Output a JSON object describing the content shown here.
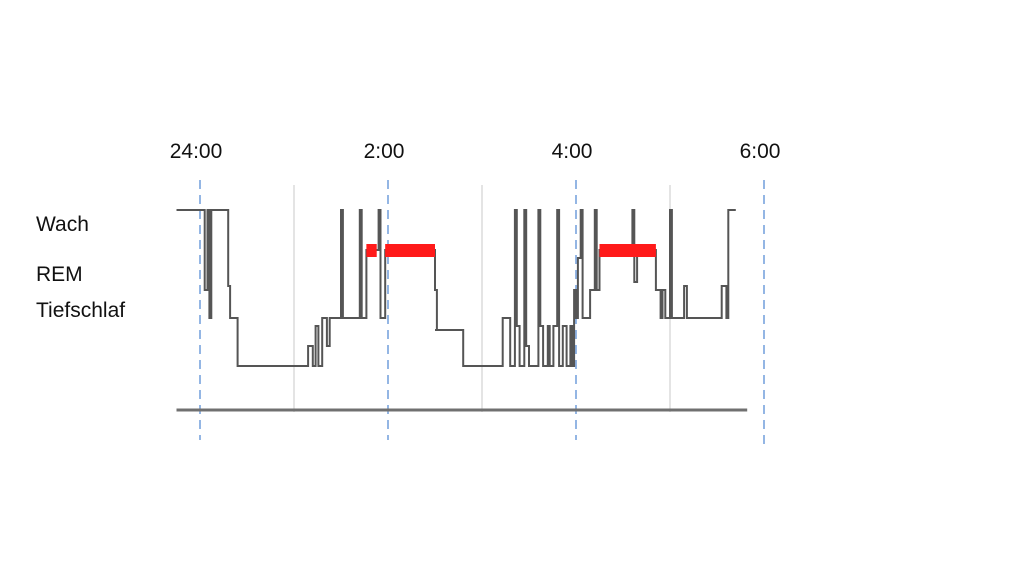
{
  "chart_data": {
    "type": "line",
    "title": "",
    "xlabel": "",
    "ylabel": "",
    "x_unit": "hours after midnight",
    "x_ticks": [
      {
        "label": "24:00",
        "value": 0
      },
      {
        "label": "2:00",
        "value": 2
      },
      {
        "label": "4:00",
        "value": 4
      },
      {
        "label": "6:00",
        "value": 6
      }
    ],
    "minor_gridlines": [
      1,
      3,
      5
    ],
    "xlim": [
      -0.25,
      5.8
    ],
    "y_levels": [
      {
        "label": "Wach",
        "value": 5
      },
      {
        "label": "REM",
        "value": 4
      },
      {
        "label": "Tiefschlaf",
        "value": 3
      }
    ],
    "ylim": [
      0,
      5
    ],
    "series": [
      {
        "color": "#555555",
        "points": [
          [
            -0.25,
            5.0
          ],
          [
            0.05,
            5.0
          ],
          [
            0.05,
            3.0
          ],
          [
            0.08,
            3.0
          ],
          [
            0.08,
            5.0
          ],
          [
            0.1,
            5.0
          ],
          [
            0.1,
            2.3
          ],
          [
            0.12,
            2.3
          ],
          [
            0.12,
            5.0
          ],
          [
            0.3,
            5.0
          ],
          [
            0.3,
            3.1
          ],
          [
            0.32,
            3.1
          ],
          [
            0.32,
            2.3
          ],
          [
            0.4,
            2.3
          ],
          [
            0.4,
            1.1
          ],
          [
            0.85,
            1.1
          ],
          [
            1.15,
            1.1
          ],
          [
            1.15,
            1.6
          ],
          [
            1.2,
            1.6
          ],
          [
            1.2,
            1.1
          ],
          [
            1.23,
            1.1
          ],
          [
            1.23,
            2.1
          ],
          [
            1.26,
            2.1
          ],
          [
            1.26,
            1.1
          ],
          [
            1.3,
            1.1
          ],
          [
            1.3,
            2.3
          ],
          [
            1.35,
            2.3
          ],
          [
            1.35,
            1.6
          ],
          [
            1.38,
            1.6
          ],
          [
            1.38,
            2.3
          ],
          [
            1.5,
            2.3
          ],
          [
            1.5,
            5.0
          ],
          [
            1.52,
            5.0
          ],
          [
            1.52,
            2.3
          ],
          [
            1.7,
            2.3
          ],
          [
            1.7,
            5.0
          ],
          [
            1.72,
            5.0
          ],
          [
            1.72,
            2.3
          ],
          [
            1.77,
            2.3
          ],
          [
            1.77,
            4.0
          ],
          [
            1.9,
            4.0
          ],
          [
            1.9,
            5.0
          ],
          [
            1.92,
            5.0
          ],
          [
            1.92,
            2.3
          ],
          [
            1.97,
            2.3
          ],
          [
            1.97,
            4.0
          ],
          [
            2.5,
            4.0
          ],
          [
            2.5,
            3.0
          ],
          [
            2.52,
            3.0
          ],
          [
            2.52,
            2.0
          ],
          [
            2.5,
            2.0
          ],
          [
            2.8,
            2.0
          ],
          [
            2.8,
            1.1
          ],
          [
            3.2,
            1.1
          ],
          [
            3.22,
            1.1
          ],
          [
            3.22,
            2.3
          ],
          [
            3.3,
            2.3
          ],
          [
            3.3,
            1.1
          ],
          [
            3.35,
            1.1
          ],
          [
            3.35,
            5.0
          ],
          [
            3.37,
            5.0
          ],
          [
            3.37,
            2.1
          ],
          [
            3.4,
            2.1
          ],
          [
            3.4,
            1.1
          ],
          [
            3.45,
            1.1
          ],
          [
            3.45,
            5.0
          ],
          [
            3.47,
            5.0
          ],
          [
            3.47,
            1.6
          ],
          [
            3.5,
            1.6
          ],
          [
            3.5,
            1.1
          ],
          [
            3.6,
            1.1
          ],
          [
            3.6,
            5.0
          ],
          [
            3.62,
            5.0
          ],
          [
            3.62,
            2.1
          ],
          [
            3.65,
            2.1
          ],
          [
            3.65,
            1.1
          ],
          [
            3.7,
            1.1
          ],
          [
            3.7,
            2.1
          ],
          [
            3.72,
            2.1
          ],
          [
            3.72,
            1.1
          ],
          [
            3.76,
            1.1
          ],
          [
            3.76,
            2.1
          ],
          [
            3.8,
            2.1
          ],
          [
            3.8,
            5.0
          ],
          [
            3.82,
            5.0
          ],
          [
            3.82,
            1.1
          ],
          [
            3.86,
            1.1
          ],
          [
            3.86,
            2.1
          ],
          [
            3.9,
            2.1
          ],
          [
            3.9,
            1.1
          ],
          [
            3.94,
            1.1
          ],
          [
            3.94,
            2.1
          ],
          [
            3.96,
            2.1
          ],
          [
            3.96,
            1.1
          ],
          [
            3.98,
            1.1
          ],
          [
            3.98,
            3.0
          ],
          [
            4.0,
            3.0
          ],
          [
            4.0,
            2.3
          ],
          [
            4.02,
            2.3
          ],
          [
            4.02,
            3.8
          ],
          [
            4.05,
            3.8
          ],
          [
            4.05,
            5.0
          ],
          [
            4.07,
            5.0
          ],
          [
            4.07,
            2.3
          ],
          [
            4.15,
            2.3
          ],
          [
            4.15,
            3.0
          ],
          [
            4.2,
            3.0
          ],
          [
            4.2,
            5.0
          ],
          [
            4.22,
            5.0
          ],
          [
            4.22,
            3.0
          ],
          [
            4.25,
            3.0
          ],
          [
            4.25,
            4.0
          ],
          [
            4.6,
            4.0
          ],
          [
            4.6,
            5.0
          ],
          [
            4.62,
            5.0
          ],
          [
            4.62,
            3.2
          ],
          [
            4.65,
            3.2
          ],
          [
            4.65,
            4.0
          ],
          [
            4.85,
            4.0
          ],
          [
            4.85,
            3.0
          ],
          [
            4.9,
            3.0
          ],
          [
            4.9,
            2.3
          ],
          [
            4.92,
            2.3
          ],
          [
            4.92,
            3.0
          ],
          [
            4.95,
            3.0
          ],
          [
            4.95,
            2.3
          ],
          [
            5.0,
            2.3
          ],
          [
            5.0,
            5.0
          ],
          [
            5.02,
            5.0
          ],
          [
            5.02,
            2.3
          ],
          [
            5.15,
            2.3
          ],
          [
            5.15,
            3.1
          ],
          [
            5.18,
            3.1
          ],
          [
            5.18,
            2.3
          ],
          [
            5.55,
            2.3
          ],
          [
            5.55,
            3.1
          ],
          [
            5.6,
            3.1
          ],
          [
            5.6,
            2.3
          ],
          [
            5.62,
            2.3
          ],
          [
            5.62,
            5.0
          ],
          [
            5.7,
            5.0
          ]
        ]
      }
    ],
    "rem_segments": [
      {
        "start": 1.77,
        "end": 1.88,
        "color": "#ff1a1a"
      },
      {
        "start": 1.97,
        "end": 2.5,
        "color": "#ff1a1a"
      },
      {
        "start": 4.25,
        "end": 4.85,
        "color": "#ff1a1a"
      }
    ],
    "baseline_color": "#707070",
    "gridline_color": "#c8c8c8",
    "major_line_color": "#5b8ed6"
  }
}
